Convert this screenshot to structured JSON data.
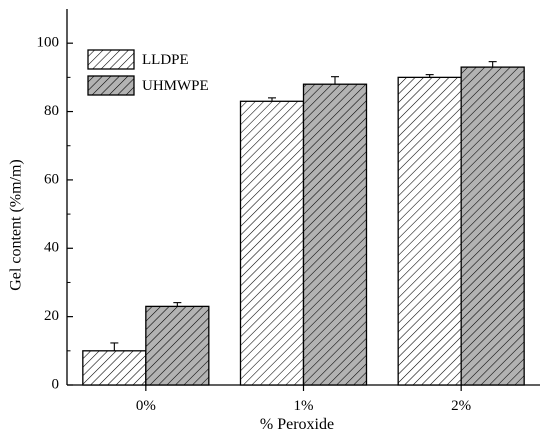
{
  "chart_data": {
    "type": "bar",
    "title": "",
    "xlabel": "% Peroxide",
    "ylabel": "Gel content (%m/m)",
    "categories": [
      "0%",
      "1%",
      "2%"
    ],
    "series": [
      {
        "name": "LLDPE",
        "values": [
          10,
          83,
          90
        ],
        "errors": [
          2.3,
          1.0,
          0.8
        ],
        "pattern": "light-hatch",
        "fill": "#ffffff"
      },
      {
        "name": "UHMWPE",
        "values": [
          23,
          88,
          93
        ],
        "errors": [
          1.1,
          2.2,
          1.6
        ],
        "pattern": "dark-hatch",
        "fill": "#b3b3b3"
      }
    ],
    "ylim": [
      0,
      110
    ],
    "yticks": [
      0,
      20,
      40,
      60,
      80,
      100
    ],
    "ytick_labels": [
      "0",
      "20",
      "40",
      "60",
      "80",
      "100"
    ],
    "grid": false,
    "legend_position": "top-left",
    "error_bars": true
  }
}
